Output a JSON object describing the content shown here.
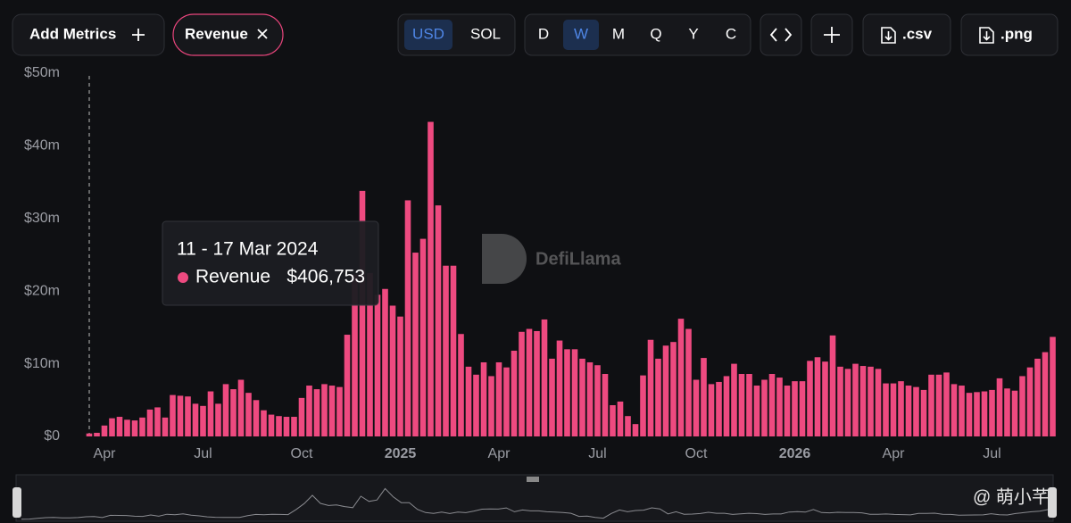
{
  "toolbar": {
    "add_metrics": "Add Metrics",
    "metric": "Revenue",
    "currencies": [
      "USD",
      "SOL"
    ],
    "active_currency": 0,
    "periods": [
      "D",
      "W",
      "M",
      "Q",
      "Y",
      "C"
    ],
    "active_period": 1,
    "exports": [
      ".csv",
      ".png"
    ]
  },
  "chart_data": {
    "type": "bar",
    "series": [
      {
        "name": "Revenue",
        "color": "#ee4a80",
        "values": [
          0.406753,
          0.5,
          1.5,
          2.5,
          2.7,
          2.3,
          2.2,
          2.6,
          3.7,
          4.0,
          2.6,
          5.7,
          5.6,
          5.5,
          4.5,
          4.2,
          6.2,
          4.5,
          7.2,
          6.5,
          7.8,
          6.0,
          5.0,
          3.6,
          3.0,
          2.8,
          2.7,
          2.7,
          5.3,
          7.0,
          6.5,
          7.2,
          7.0,
          6.8,
          14.0,
          22.3,
          33.8,
          22.5,
          19.5,
          20.3,
          18.0,
          16.5,
          32.5,
          25.3,
          27.2,
          43.3,
          31.8,
          23.5,
          23.5,
          14.1,
          9.6,
          8.5,
          10.2,
          8.3,
          10.2,
          9.5,
          11.8,
          14.4,
          14.8,
          14.5,
          16.1,
          10.7,
          13.2,
          12.0,
          12.0,
          10.7,
          10.2,
          9.8,
          8.6,
          4.3,
          4.8,
          2.8,
          1.7,
          8.4,
          13.3,
          10.7,
          12.5,
          13.0,
          16.2,
          14.8,
          7.8,
          10.8,
          7.2,
          7.5,
          8.3,
          10.0,
          8.6,
          8.6,
          7.0,
          7.8,
          8.6,
          8.1,
          7.0,
          7.6,
          7.6,
          10.4,
          10.9,
          10.3,
          13.9,
          9.6,
          9.3,
          10.0,
          9.7,
          9.6,
          9.3,
          7.3,
          7.3,
          7.6,
          7.0,
          6.8,
          6.4,
          8.5,
          8.5,
          8.8,
          7.2,
          7.0,
          6.0,
          6.1,
          6.2,
          6.4,
          8.0,
          6.6,
          6.3,
          8.3,
          9.5,
          10.7,
          11.6,
          13.7
        ]
      }
    ],
    "categories": [
      null,
      null,
      "Apr",
      null,
      null,
      null,
      null,
      null,
      null,
      null,
      null,
      null,
      null,
      null,
      null,
      "Jul",
      null,
      null,
      null,
      null,
      null,
      null,
      null,
      null,
      null,
      null,
      null,
      null,
      "Oct",
      null,
      null,
      null,
      null,
      null,
      null,
      null,
      null,
      null,
      null,
      null,
      null,
      "2025",
      null,
      null,
      null,
      null,
      null,
      null,
      null,
      null,
      null,
      null,
      null,
      null,
      "Apr",
      null,
      null,
      null,
      null,
      null,
      null,
      null,
      null,
      null,
      null,
      null,
      null,
      "Jul",
      null,
      null,
      null,
      null,
      null,
      null,
      null,
      null,
      null,
      null,
      null,
      null,
      "Oct",
      null,
      null,
      null,
      null,
      null,
      null,
      null,
      null,
      null,
      null,
      null,
      null,
      "2026",
      null,
      null,
      null,
      null,
      null,
      null,
      null,
      null,
      null,
      null,
      null,
      null,
      "Apr",
      null,
      null,
      null,
      null,
      null,
      null,
      null,
      null,
      null,
      null,
      null,
      null,
      "Jul",
      null,
      null,
      null,
      null,
      null,
      null,
      null,
      null
    ],
    "ylim": [
      0,
      50
    ],
    "yticks": [
      {
        "value": 0,
        "label": "$0"
      },
      {
        "value": 10,
        "label": "$10m"
      },
      {
        "value": 20,
        "label": "$20m"
      },
      {
        "value": 30,
        "label": "$30m"
      },
      {
        "value": 40,
        "label": "$40m"
      },
      {
        "value": 50,
        "label": "$50m"
      }
    ],
    "tooltip": {
      "title": "11 - 17 Mar 2024",
      "series": "Revenue",
      "value": "$406,753"
    }
  },
  "watermark": "DefiLlama",
  "credit": "@ 萌小芊"
}
